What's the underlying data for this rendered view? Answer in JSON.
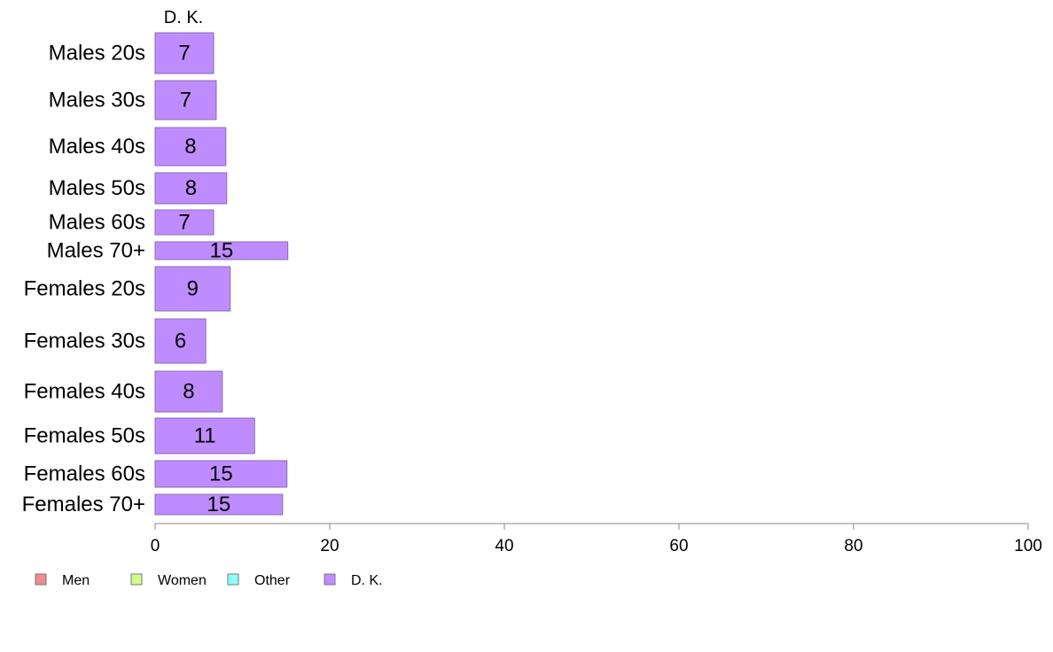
{
  "chart_data": {
    "type": "bar",
    "orientation": "horizontal",
    "stacked": true,
    "categories": [
      "Males 20s",
      "Males 30s",
      "Males 40s",
      "Males 50s",
      "Males 60s",
      "Males 70+",
      "Females 20s",
      "Females 30s",
      "Females 40s",
      "Females 50s",
      "Females 60s",
      "Females 70+"
    ],
    "series": [
      {
        "name": "Men",
        "color": "#f28b8b",
        "values": [
          0,
          0,
          0,
          0,
          0,
          0,
          0,
          0,
          0,
          0,
          0,
          0
        ]
      },
      {
        "name": "Women",
        "color": "#ccff8c",
        "values": [
          0,
          0,
          0,
          0,
          0,
          0,
          0,
          0,
          0,
          0,
          0,
          0
        ]
      },
      {
        "name": "Other",
        "color": "#8cffff",
        "values": [
          0,
          0,
          0,
          0,
          0,
          0,
          0,
          0,
          0,
          0,
          0,
          0
        ]
      },
      {
        "name": "D. K.",
        "color": "#bf8cff",
        "values": [
          6.7,
          7.0,
          8.1,
          8.2,
          6.7,
          15.2,
          8.6,
          5.8,
          7.7,
          11.4,
          15.1,
          14.6
        ]
      }
    ],
    "bar_labels": [
      "7",
      "7",
      "8",
      "8",
      "7",
      "15",
      "9",
      "6",
      "8",
      "11",
      "15",
      "15"
    ],
    "top_label": "D. K.",
    "xlim": [
      0,
      100
    ],
    "xticks": [
      "0",
      "20",
      "40",
      "60",
      "80",
      "100"
    ],
    "xlabel": "",
    "ylabel": "",
    "title": "",
    "grid": false,
    "legend_position": "bottom-left",
    "bar_stroke": "#8a6bb0"
  }
}
